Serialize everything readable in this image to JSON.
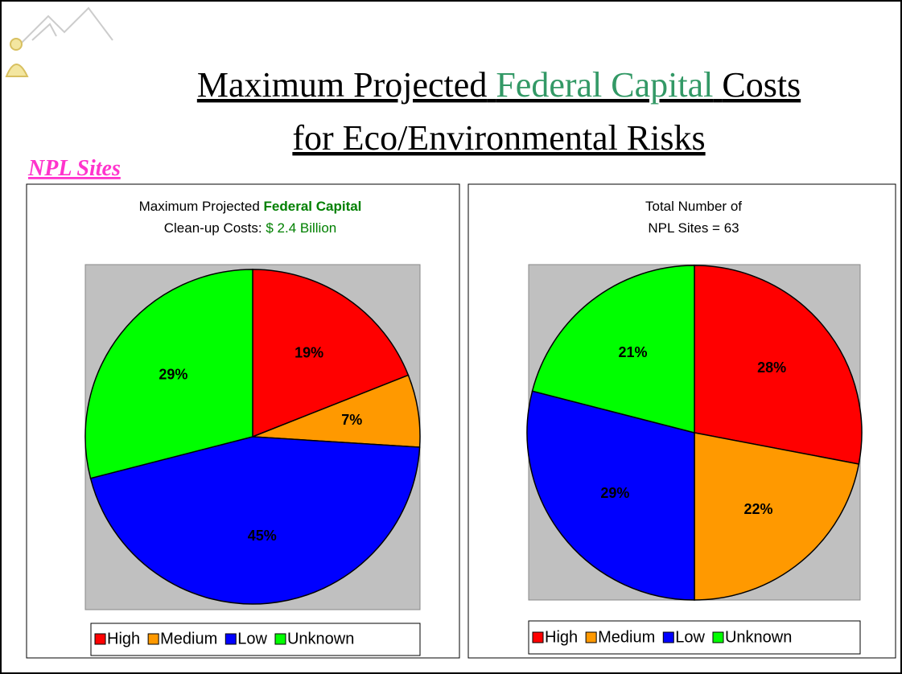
{
  "header": {
    "title_line1": [
      "Maximum Projected",
      "Federal Capital",
      "Costs"
    ],
    "title_line2": "for Eco/Environmental Risks",
    "section": "NPL Sites"
  },
  "chart_data": [
    {
      "type": "pie",
      "title_parts": [
        "Maximum Projected",
        "Federal Capital",
        "Clean-up Costs:",
        "$ 2.4 Billion"
      ],
      "categories": [
        "High",
        "Medium",
        "Low",
        "Unknown"
      ],
      "values": [
        19,
        7,
        45,
        29
      ],
      "value_labels": [
        "19%",
        "7%",
        "45%",
        "29%"
      ],
      "colors": [
        "#ff0000",
        "#ff9900",
        "#0000ff",
        "#00ff00"
      ],
      "legend": "bottom"
    },
    {
      "type": "pie",
      "title_parts": [
        "Total Number of",
        "NPL Sites = 63"
      ],
      "categories": [
        "High",
        "Medium",
        "Low",
        "Unknown"
      ],
      "values": [
        28,
        22,
        29,
        21
      ],
      "value_labels": [
        "28%",
        "22%",
        "29%",
        "21%"
      ],
      "colors": [
        "#ff0000",
        "#ff9900",
        "#0000ff",
        "#00ff00"
      ],
      "legend": "bottom"
    }
  ]
}
